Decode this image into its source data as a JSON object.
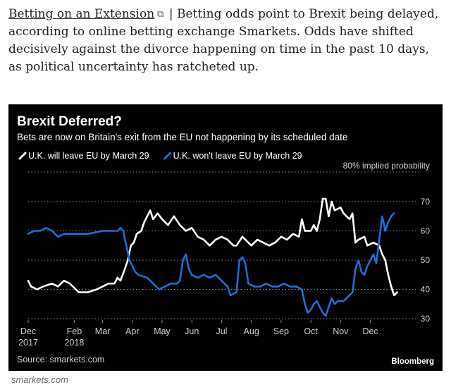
{
  "article": {
    "link_text": "Betting on an Extension",
    "link_icon": "external-link-icon",
    "body_text": " | Betting odds point to Brexit being delayed, according to online betting exchange Smarkets. Odds have shifted decisively against the divorce happening on time in the past 10 days, as political uncertainty has ratcheted up."
  },
  "footer": {
    "credit": "smarkets.com"
  },
  "colors": {
    "background": "#000000",
    "leave_series": "#ffffff",
    "wont_leave_series": "#1f6ed4",
    "grid": "#8a8a8a",
    "text": "#ffffff",
    "muted_text": "#d0d0d0"
  },
  "chart_data": {
    "type": "line",
    "title": "Brexit Deferred?",
    "subtitle": "Bets are now on Britain's exit from the EU not happening by its scheduled date",
    "source": "Source: smarkets.com",
    "brand": "Bloomberg",
    "legend_placement": "top-left",
    "grid": "dotted-horizontal",
    "ylim": [
      30,
      70
    ],
    "xlim": [
      0,
      12.6
    ],
    "y_ticks": [
      30,
      40,
      50,
      60,
      70
    ],
    "x_ticks": [
      {
        "pos": 0,
        "label": "Dec",
        "sub": "2017"
      },
      {
        "pos": 1.55,
        "label": "Feb",
        "sub": "2018"
      },
      {
        "pos": 2.5,
        "label": "Mar",
        "sub": ""
      },
      {
        "pos": 3.5,
        "label": "Apr",
        "sub": ""
      },
      {
        "pos": 4.5,
        "label": "May",
        "sub": ""
      },
      {
        "pos": 5.5,
        "label": "Jun",
        "sub": ""
      },
      {
        "pos": 6.5,
        "label": "Jul",
        "sub": ""
      },
      {
        "pos": 7.5,
        "label": "Aug",
        "sub": ""
      },
      {
        "pos": 8.5,
        "label": "Sep",
        "sub": ""
      },
      {
        "pos": 9.5,
        "label": "Oct",
        "sub": ""
      },
      {
        "pos": 10.5,
        "label": "Nov",
        "sub": ""
      },
      {
        "pos": 11.5,
        "label": "Dec",
        "sub": ""
      }
    ],
    "reference_line": {
      "y": 80,
      "label": "80% implied probability"
    },
    "series": [
      {
        "name": "U.K. will leave EU by March 29",
        "color": "#ffffff",
        "points": [
          [
            0,
            43
          ],
          [
            0.1,
            41
          ],
          [
            0.3,
            40
          ],
          [
            0.5,
            41
          ],
          [
            0.8,
            42
          ],
          [
            1,
            41
          ],
          [
            1.2,
            43
          ],
          [
            1.4,
            42
          ],
          [
            1.6,
            40
          ],
          [
            1.7,
            39
          ],
          [
            2,
            39
          ],
          [
            2.3,
            40
          ],
          [
            2.5,
            41
          ],
          [
            2.7,
            42
          ],
          [
            2.9,
            42
          ],
          [
            3,
            44
          ],
          [
            3.1,
            43
          ],
          [
            3.25,
            47
          ],
          [
            3.35,
            50
          ],
          [
            3.45,
            55
          ],
          [
            3.55,
            56
          ],
          [
            3.65,
            59
          ],
          [
            3.8,
            60
          ],
          [
            3.9,
            63
          ],
          [
            4,
            65
          ],
          [
            4.1,
            67
          ],
          [
            4.2,
            64
          ],
          [
            4.35,
            66
          ],
          [
            4.5,
            64
          ],
          [
            4.7,
            62
          ],
          [
            4.9,
            65
          ],
          [
            5.1,
            62
          ],
          [
            5.3,
            60
          ],
          [
            5.5,
            61
          ],
          [
            5.7,
            58
          ],
          [
            5.9,
            57
          ],
          [
            6.1,
            55
          ],
          [
            6.3,
            57
          ],
          [
            6.5,
            58
          ],
          [
            6.7,
            57
          ],
          [
            6.9,
            55
          ],
          [
            7,
            55
          ],
          [
            7.2,
            58
          ],
          [
            7.3,
            57
          ],
          [
            7.5,
            55
          ],
          [
            7.7,
            57
          ],
          [
            7.9,
            56
          ],
          [
            8.1,
            55
          ],
          [
            8.3,
            56
          ],
          [
            8.5,
            58
          ],
          [
            8.7,
            57
          ],
          [
            8.9,
            59
          ],
          [
            9.1,
            58
          ],
          [
            9.2,
            64
          ],
          [
            9.3,
            60
          ],
          [
            9.5,
            60
          ],
          [
            9.6,
            62
          ],
          [
            9.7,
            60
          ],
          [
            9.8,
            64
          ],
          [
            9.9,
            71
          ],
          [
            10,
            71
          ],
          [
            10.1,
            65
          ],
          [
            10.2,
            70
          ],
          [
            10.3,
            67
          ],
          [
            10.5,
            68
          ],
          [
            10.6,
            66
          ],
          [
            10.8,
            64
          ],
          [
            10.9,
            66
          ],
          [
            11,
            56
          ],
          [
            11.1,
            57
          ],
          [
            11.3,
            58
          ],
          [
            11.4,
            55
          ],
          [
            11.6,
            56
          ],
          [
            11.8,
            55
          ],
          [
            11.9,
            52
          ],
          [
            12,
            50
          ],
          [
            12.1,
            45
          ],
          [
            12.2,
            41
          ],
          [
            12.3,
            38
          ],
          [
            12.4,
            39
          ]
        ]
      },
      {
        "name": "U.K. won't leave EU by March 29",
        "color": "#1f6ed4",
        "points": [
          [
            0,
            59
          ],
          [
            0.2,
            60
          ],
          [
            0.4,
            60
          ],
          [
            0.6,
            61
          ],
          [
            0.8,
            60
          ],
          [
            1,
            58
          ],
          [
            1.2,
            59
          ],
          [
            1.5,
            59
          ],
          [
            2,
            59
          ],
          [
            2.5,
            60
          ],
          [
            3,
            60
          ],
          [
            3.1,
            61
          ],
          [
            3.2,
            60
          ],
          [
            3.25,
            57
          ],
          [
            3.3,
            55
          ],
          [
            3.4,
            50
          ],
          [
            3.5,
            48
          ],
          [
            3.6,
            46
          ],
          [
            3.7,
            45
          ],
          [
            4,
            44
          ],
          [
            4.2,
            42
          ],
          [
            4.4,
            40
          ],
          [
            4.6,
            41
          ],
          [
            4.8,
            42
          ],
          [
            5,
            42
          ],
          [
            5.1,
            43
          ],
          [
            5.2,
            50
          ],
          [
            5.3,
            52
          ],
          [
            5.4,
            47
          ],
          [
            5.5,
            45
          ],
          [
            5.7,
            44
          ],
          [
            5.9,
            45
          ],
          [
            6.1,
            44
          ],
          [
            6.3,
            45
          ],
          [
            6.5,
            43
          ],
          [
            6.7,
            41
          ],
          [
            6.8,
            38
          ],
          [
            7,
            39
          ],
          [
            7.1,
            50
          ],
          [
            7.2,
            51
          ],
          [
            7.3,
            49
          ],
          [
            7.4,
            42
          ],
          [
            7.6,
            41
          ],
          [
            7.8,
            41
          ],
          [
            8,
            42
          ],
          [
            8.2,
            41
          ],
          [
            8.4,
            41
          ],
          [
            8.6,
            42
          ],
          [
            8.8,
            41
          ],
          [
            9,
            41
          ],
          [
            9.2,
            40
          ],
          [
            9.3,
            35
          ],
          [
            9.4,
            32
          ],
          [
            9.5,
            33
          ],
          [
            9.6,
            35
          ],
          [
            9.7,
            36
          ],
          [
            9.8,
            34
          ],
          [
            9.9,
            32
          ],
          [
            10,
            31
          ],
          [
            10.1,
            34
          ],
          [
            10.2,
            37
          ],
          [
            10.3,
            35
          ],
          [
            10.4,
            36
          ],
          [
            10.6,
            36
          ],
          [
            10.8,
            38
          ],
          [
            10.9,
            39
          ],
          [
            11,
            47
          ],
          [
            11.1,
            50
          ],
          [
            11.2,
            46
          ],
          [
            11.3,
            45
          ],
          [
            11.4,
            48
          ],
          [
            11.5,
            50
          ],
          [
            11.6,
            52
          ],
          [
            11.7,
            49
          ],
          [
            11.8,
            57
          ],
          [
            11.9,
            65
          ],
          [
            12,
            60
          ],
          [
            12.1,
            63
          ],
          [
            12.2,
            65
          ],
          [
            12.3,
            66
          ]
        ]
      }
    ]
  }
}
